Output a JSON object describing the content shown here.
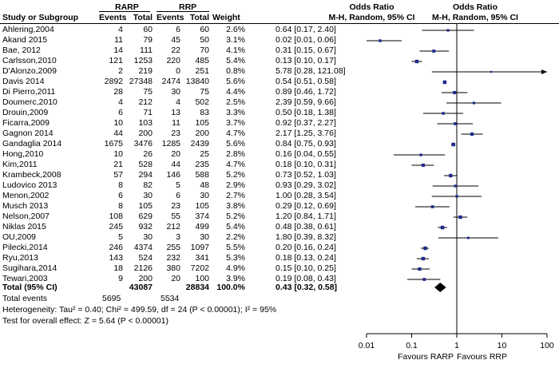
{
  "headers": {
    "group1": "RARP",
    "group2": "RRP",
    "study": "Study or Subgroup",
    "events": "Events",
    "total": "Total",
    "weight": "Weight",
    "odds_ratio": "Odds Ratio",
    "method": "M-H, Random, 95% CI"
  },
  "studies": [
    {
      "name": "Ahlering,2004",
      "e1": "4",
      "t1": "60",
      "e2": "6",
      "t2": "60",
      "weight": "2.6%",
      "or_text": "0.64 [0.17, 2.40]"
    },
    {
      "name": "Akand 2015",
      "e1": "11",
      "t1": "79",
      "e2": "45",
      "t2": "50",
      "weight": "3.1%",
      "or_text": "0.02 [0.01, 0.06]"
    },
    {
      "name": "Bae, 2012",
      "e1": "14",
      "t1": "111",
      "e2": "22",
      "t2": "70",
      "weight": "4.1%",
      "or_text": "0.31 [0.15, 0.67]"
    },
    {
      "name": "Carlsson,2010",
      "e1": "121",
      "t1": "1253",
      "e2": "220",
      "t2": "485",
      "weight": "5.4%",
      "or_text": "0.13 [0.10, 0.17]"
    },
    {
      "name": "D'Alonzo,2009",
      "e1": "2",
      "t1": "219",
      "e2": "0",
      "t2": "251",
      "weight": "0.8%",
      "or_text": "5.78 [0.28, 121.08]"
    },
    {
      "name": "Davis 2014",
      "e1": "2892",
      "t1": "27348",
      "e2": "2474",
      "t2": "13840",
      "weight": "5.6%",
      "or_text": "0.54 [0.51, 0.58]"
    },
    {
      "name": "Di Pierro,2011",
      "e1": "28",
      "t1": "75",
      "e2": "30",
      "t2": "75",
      "weight": "4.4%",
      "or_text": "0.89 [0.46, 1.72]"
    },
    {
      "name": "Doumerc,2010",
      "e1": "4",
      "t1": "212",
      "e2": "4",
      "t2": "502",
      "weight": "2.5%",
      "or_text": "2.39 [0.59, 9.66]"
    },
    {
      "name": "Drouin,2009",
      "e1": "6",
      "t1": "71",
      "e2": "13",
      "t2": "83",
      "weight": "3.3%",
      "or_text": "0.50 [0.18, 1.38]"
    },
    {
      "name": "Ficarra,2009",
      "e1": "10",
      "t1": "103",
      "e2": "11",
      "t2": "105",
      "weight": "3.7%",
      "or_text": "0.92 [0.37, 2.27]"
    },
    {
      "name": "Gagnon 2014",
      "e1": "44",
      "t1": "200",
      "e2": "23",
      "t2": "200",
      "weight": "4.7%",
      "or_text": "2.17 [1.25, 3.76]"
    },
    {
      "name": "Gandaglia 2014",
      "e1": "1675",
      "t1": "3476",
      "e2": "1285",
      "t2": "2439",
      "weight": "5.6%",
      "or_text": "0.84 [0.75, 0.93]"
    },
    {
      "name": "Hong,2010",
      "e1": "10",
      "t1": "26",
      "e2": "20",
      "t2": "25",
      "weight": "2.8%",
      "or_text": "0.16 [0.04, 0.55]"
    },
    {
      "name": "Kim,2011",
      "e1": "21",
      "t1": "528",
      "e2": "44",
      "t2": "235",
      "weight": "4.7%",
      "or_text": "0.18 [0.10, 0.31]"
    },
    {
      "name": "Krambeck,2008",
      "e1": "57",
      "t1": "294",
      "e2": "146",
      "t2": "588",
      "weight": "5.2%",
      "or_text": "0.73 [0.52, 1.03]"
    },
    {
      "name": "Ludovico 2013",
      "e1": "8",
      "t1": "82",
      "e2": "5",
      "t2": "48",
      "weight": "2.9%",
      "or_text": "0.93 [0.29, 3.02]"
    },
    {
      "name": "Menon,2002",
      "e1": "6",
      "t1": "30",
      "e2": "6",
      "t2": "30",
      "weight": "2.7%",
      "or_text": "1.00 [0.28, 3.54]"
    },
    {
      "name": "Musch 2013",
      "e1": "8",
      "t1": "105",
      "e2": "23",
      "t2": "105",
      "weight": "3.8%",
      "or_text": "0.29 [0.12, 0.69]"
    },
    {
      "name": "Nelson,2007",
      "e1": "108",
      "t1": "629",
      "e2": "55",
      "t2": "374",
      "weight": "5.2%",
      "or_text": "1.20 [0.84, 1.71]"
    },
    {
      "name": "Niklas 2015",
      "e1": "245",
      "t1": "932",
      "e2": "212",
      "t2": "499",
      "weight": "5.4%",
      "or_text": "0.48 [0.38, 0.61]"
    },
    {
      "name": "OU,2009",
      "e1": "5",
      "t1": "30",
      "e2": "3",
      "t2": "30",
      "weight": "2.2%",
      "or_text": "1.80 [0.39, 8.32]"
    },
    {
      "name": "Pilecki,2014",
      "e1": "246",
      "t1": "4374",
      "e2": "255",
      "t2": "1097",
      "weight": "5.5%",
      "or_text": "0.20 [0.16, 0.24]"
    },
    {
      "name": "Ryu,2013",
      "e1": "143",
      "t1": "524",
      "e2": "232",
      "t2": "341",
      "weight": "5.3%",
      "or_text": "0.18 [0.13, 0.24]"
    },
    {
      "name": "Sugihara,2014",
      "e1": "18",
      "t1": "2126",
      "e2": "380",
      "t2": "7202",
      "weight": "4.9%",
      "or_text": "0.15 [0.10, 0.25]"
    },
    {
      "name": "Tewari,2003",
      "e1": "9",
      "t1": "200",
      "e2": "20",
      "t2": "100",
      "weight": "3.9%",
      "or_text": "0.19 [0.08, 0.43]"
    }
  ],
  "total": {
    "label": "Total (95% CI)",
    "t1": "43087",
    "t2": "28834",
    "weight": "100.0%",
    "or_text": "0.43 [0.32, 0.58]",
    "events_label": "Total events",
    "e1": "5695",
    "e2": "5534"
  },
  "footer": {
    "heterogeneity": "Heterogeneity: Tau² = 0.40; Chi² = 499.59, df = 24 (P < 0.00001); I² = 95%",
    "overall": "Test for overall effect: Z = 5.64 (P < 0.00001)"
  },
  "chart_data": {
    "type": "forest",
    "scale": "log",
    "xlim": [
      0.01,
      100
    ],
    "ticks": [
      0.01,
      0.1,
      1,
      10,
      100
    ],
    "tick_labels": [
      "0.01",
      "0.1",
      "1",
      "10",
      "100"
    ],
    "favours_left": "Favours RARP",
    "favours_right": "Favours RRP",
    "estimates": [
      {
        "or": 0.64,
        "lo": 0.17,
        "hi": 2.4,
        "w": 2.6
      },
      {
        "or": 0.02,
        "lo": 0.01,
        "hi": 0.06,
        "w": 3.1
      },
      {
        "or": 0.31,
        "lo": 0.15,
        "hi": 0.67,
        "w": 4.1
      },
      {
        "or": 0.13,
        "lo": 0.1,
        "hi": 0.17,
        "w": 5.4
      },
      {
        "or": 5.78,
        "lo": 0.28,
        "hi": 121.08,
        "w": 0.8
      },
      {
        "or": 0.54,
        "lo": 0.51,
        "hi": 0.58,
        "w": 5.6
      },
      {
        "or": 0.89,
        "lo": 0.46,
        "hi": 1.72,
        "w": 4.4
      },
      {
        "or": 2.39,
        "lo": 0.59,
        "hi": 9.66,
        "w": 2.5
      },
      {
        "or": 0.5,
        "lo": 0.18,
        "hi": 1.38,
        "w": 3.3
      },
      {
        "or": 0.92,
        "lo": 0.37,
        "hi": 2.27,
        "w": 3.7
      },
      {
        "or": 2.17,
        "lo": 1.25,
        "hi": 3.76,
        "w": 4.7
      },
      {
        "or": 0.84,
        "lo": 0.75,
        "hi": 0.93,
        "w": 5.6
      },
      {
        "or": 0.16,
        "lo": 0.04,
        "hi": 0.55,
        "w": 2.8
      },
      {
        "or": 0.18,
        "lo": 0.1,
        "hi": 0.31,
        "w": 4.7
      },
      {
        "or": 0.73,
        "lo": 0.52,
        "hi": 1.03,
        "w": 5.2
      },
      {
        "or": 0.93,
        "lo": 0.29,
        "hi": 3.02,
        "w": 2.9
      },
      {
        "or": 1.0,
        "lo": 0.28,
        "hi": 3.54,
        "w": 2.7
      },
      {
        "or": 0.29,
        "lo": 0.12,
        "hi": 0.69,
        "w": 3.8
      },
      {
        "or": 1.2,
        "lo": 0.84,
        "hi": 1.71,
        "w": 5.2
      },
      {
        "or": 0.48,
        "lo": 0.38,
        "hi": 0.61,
        "w": 5.4
      },
      {
        "or": 1.8,
        "lo": 0.39,
        "hi": 8.32,
        "w": 2.2
      },
      {
        "or": 0.2,
        "lo": 0.16,
        "hi": 0.24,
        "w": 5.5
      },
      {
        "or": 0.18,
        "lo": 0.13,
        "hi": 0.24,
        "w": 5.3
      },
      {
        "or": 0.15,
        "lo": 0.1,
        "hi": 0.25,
        "w": 4.9
      },
      {
        "or": 0.19,
        "lo": 0.08,
        "hi": 0.43,
        "w": 3.9
      }
    ],
    "pooled": {
      "or": 0.43,
      "lo": 0.32,
      "hi": 0.58
    },
    "colors": {
      "marker": "#1f2a8c",
      "line": "#000000",
      "diamond": "#000000"
    }
  }
}
